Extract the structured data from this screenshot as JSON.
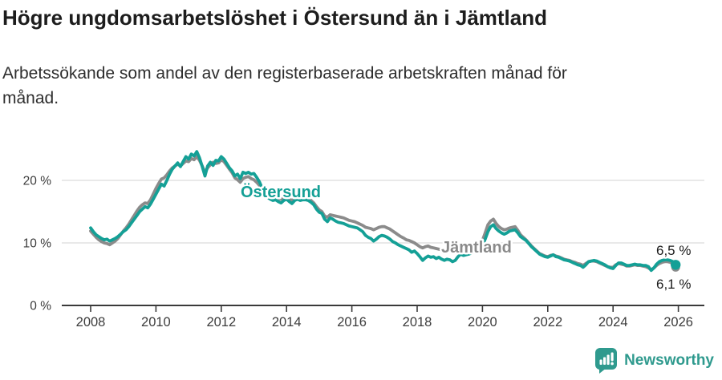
{
  "header": {
    "title": "Högre ungdomsarbetslöshet i Östersund än i Jämtland",
    "subtitle_lines": [
      "Arbetssökande som andel av den registerbaserade arbetskraften månad för",
      "månad."
    ]
  },
  "chart_data": {
    "type": "line",
    "title": "Högre ungdomsarbetslöshet i Östersund än i Jämtland",
    "unit": "%",
    "grid": "horizontal-only",
    "legend_position": "inline-labels",
    "xlim": [
      2007.1,
      2026.8
    ],
    "ylim": [
      0,
      28
    ],
    "x_ticks": [
      2008,
      2010,
      2012,
      2014,
      2016,
      2018,
      2020,
      2022,
      2024,
      2026
    ],
    "x_tick_labels": [
      "2008",
      "2010",
      "2012",
      "2014",
      "2016",
      "2018",
      "2020",
      "2022",
      "2024",
      "2026"
    ],
    "y_ticks": [
      {
        "value": 0,
        "label": "0 %"
      },
      {
        "value": 10,
        "label": "10 %"
      },
      {
        "value": 20,
        "label": "20 %"
      }
    ],
    "series": [
      {
        "name": "Östersund",
        "color": "#14a096",
        "end_label": "6,5 %",
        "end_value": 6.5,
        "start_year": 2008,
        "step_months": 1,
        "values": [
          12.4,
          11.8,
          11.3,
          11.0,
          10.7,
          10.5,
          10.6,
          10.3,
          10.5,
          10.7,
          11.0,
          11.4,
          11.8,
          12.1,
          12.6,
          13.2,
          13.8,
          14.4,
          15.0,
          15.4,
          15.8,
          15.6,
          16.2,
          17.0,
          17.8,
          18.6,
          19.4,
          19.1,
          20.0,
          21.0,
          21.8,
          22.3,
          22.8,
          22.2,
          23.0,
          23.8,
          23.4,
          24.2,
          23.9,
          24.6,
          23.6,
          22.2,
          20.7,
          22.3,
          22.9,
          22.4,
          23.2,
          23.1,
          23.8,
          23.4,
          22.7,
          22.0,
          21.5,
          20.7,
          21.0,
          20.3,
          21.3,
          21.1,
          21.3,
          21.0,
          21.1,
          20.5,
          19.8,
          18.8,
          17.9,
          17.3,
          17.0,
          16.8,
          16.9,
          16.6,
          16.4,
          16.8,
          17.0,
          16.6,
          16.3,
          16.8,
          17.0,
          16.8,
          16.9,
          16.9,
          16.8,
          16.5,
          16.1,
          15.4,
          14.9,
          14.7,
          13.8,
          13.4,
          14.0,
          13.8,
          13.5,
          13.3,
          13.2,
          13.1,
          12.9,
          12.7,
          12.6,
          12.5,
          12.4,
          12.1,
          11.8,
          11.2,
          10.9,
          10.7,
          10.3,
          10.6,
          11.0,
          11.2,
          11.1,
          10.9,
          10.6,
          10.2,
          10.0,
          9.7,
          9.5,
          9.3,
          9.1,
          8.9,
          8.5,
          8.7,
          8.3,
          7.8,
          7.2,
          7.6,
          7.9,
          7.7,
          7.8,
          7.5,
          7.7,
          7.4,
          7.2,
          7.4,
          7.3,
          7.0,
          7.2,
          7.8,
          8.2,
          8.0,
          8.1,
          8.2,
          8.4,
          8.6,
          8.8,
          9.2,
          9.6,
          10.6,
          11.8,
          12.6,
          12.9,
          12.3,
          11.9,
          11.6,
          11.4,
          11.6,
          11.9,
          12.0,
          12.1,
          11.6,
          11.0,
          10.7,
          10.4,
          9.9,
          9.4,
          9.0,
          8.6,
          8.2,
          8.0,
          7.8,
          7.7,
          7.9,
          8.1,
          7.8,
          7.7,
          7.5,
          7.3,
          7.2,
          7.1,
          6.9,
          6.7,
          6.5,
          6.4,
          6.1,
          6.5,
          7.0,
          7.1,
          7.2,
          7.1,
          6.9,
          6.7,
          6.5,
          6.2,
          6.0,
          5.9,
          6.4,
          6.8,
          6.8,
          6.6,
          6.4,
          6.4,
          6.5,
          6.6,
          6.5,
          6.5,
          6.4,
          6.4,
          6.2,
          5.6,
          6.0,
          6.6,
          7.0,
          7.2,
          7.3,
          7.3,
          7.2,
          7.0,
          6.5
        ]
      },
      {
        "name": "Jämtland",
        "color": "#8b8b8b",
        "end_label": "6,1 %",
        "end_value": 6.1,
        "start_year": 2008,
        "step_months": 1,
        "values": [
          11.9,
          11.4,
          10.9,
          10.5,
          10.2,
          10.0,
          9.9,
          9.7,
          10.0,
          10.3,
          10.7,
          11.3,
          11.9,
          12.4,
          13.0,
          13.7,
          14.4,
          15.1,
          15.7,
          16.1,
          16.4,
          16.3,
          16.9,
          17.8,
          18.7,
          19.5,
          20.2,
          20.4,
          20.9,
          21.5,
          22.0,
          22.3,
          22.6,
          22.3,
          22.7,
          23.1,
          23.0,
          23.5,
          23.3,
          23.8,
          23.2,
          22.3,
          21.3,
          22.0,
          22.5,
          22.9,
          22.7,
          22.8,
          23.3,
          23.0,
          22.4,
          21.8,
          21.2,
          20.4,
          20.1,
          19.7,
          20.3,
          20.5,
          20.6,
          20.3,
          20.1,
          19.7,
          19.2,
          18.5,
          17.9,
          17.6,
          17.4,
          17.2,
          17.3,
          17.1,
          17.0,
          17.2,
          17.3,
          17.0,
          16.8,
          17.1,
          17.2,
          17.0,
          17.1,
          17.1,
          17.0,
          16.8,
          16.4,
          15.8,
          15.3,
          15.0,
          14.3,
          14.1,
          14.5,
          14.4,
          14.3,
          14.2,
          14.1,
          14.0,
          13.8,
          13.6,
          13.5,
          13.4,
          13.2,
          13.0,
          12.8,
          12.5,
          12.4,
          12.3,
          12.1,
          12.3,
          12.5,
          12.6,
          12.6,
          12.4,
          12.2,
          11.9,
          11.6,
          11.3,
          11.0,
          10.8,
          10.5,
          10.4,
          10.2,
          10.0,
          9.7,
          9.4,
          9.2,
          9.4,
          9.5,
          9.3,
          9.2,
          9.1,
          9.0,
          8.9,
          8.8,
          8.7,
          8.7,
          8.6,
          8.6,
          8.8,
          8.9,
          8.7,
          8.6,
          8.7,
          8.9,
          9.1,
          9.4,
          9.9,
          10.4,
          11.6,
          12.9,
          13.5,
          13.8,
          13.1,
          12.6,
          12.3,
          12.1,
          12.2,
          12.4,
          12.5,
          12.6,
          12.0,
          11.3,
          10.9,
          10.5,
          10.0,
          9.5,
          9.1,
          8.7,
          8.3,
          8.1,
          7.9,
          7.8,
          8.0,
          8.1,
          7.9,
          7.8,
          7.6,
          7.4,
          7.3,
          7.2,
          7.0,
          6.9,
          6.7,
          6.6,
          6.4,
          6.7,
          7.0,
          7.1,
          7.1,
          7.0,
          6.8,
          6.6,
          6.4,
          6.2,
          6.1,
          6.1,
          6.5,
          6.7,
          6.6,
          6.5,
          6.3,
          6.3,
          6.4,
          6.5,
          6.4,
          6.4,
          6.3,
          6.2,
          6.0,
          5.7,
          6.0,
          6.4,
          6.7,
          6.9,
          7.0,
          7.0,
          6.9,
          6.7,
          6.1
        ]
      }
    ]
  },
  "footer": {
    "brand": "Newsworthy"
  }
}
